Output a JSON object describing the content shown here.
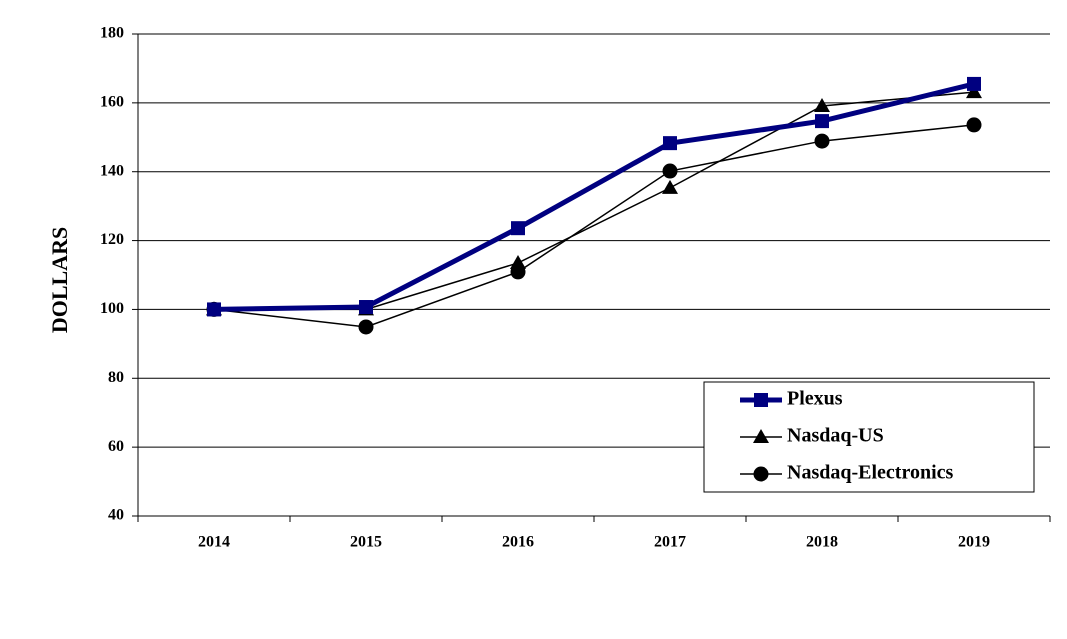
{
  "chart_data": {
    "type": "line",
    "y_label": "DOLLARS",
    "categories": [
      "2014",
      "2015",
      "2016",
      "2017",
      "2018",
      "2019"
    ],
    "series": [
      {
        "name": "Plexus",
        "color": "#000080",
        "marker": "square",
        "values": [
          100,
          100.7,
          123.6,
          148.3,
          154.7,
          165.5
        ]
      },
      {
        "name": "Nasdaq-US",
        "color": "#000000",
        "marker": "triangle",
        "values": [
          100,
          100,
          113.5,
          135.3,
          159.1,
          163.1
        ]
      },
      {
        "name": "Nasdaq-Electronics",
        "color": "#000000",
        "marker": "circle",
        "values": [
          100,
          94.9,
          110.9,
          140.2,
          148.9,
          153.6
        ]
      }
    ],
    "ylim": [
      40,
      180
    ],
    "yticks": [
      40,
      60,
      80,
      100,
      120,
      140,
      160,
      180
    ],
    "grid": true
  }
}
